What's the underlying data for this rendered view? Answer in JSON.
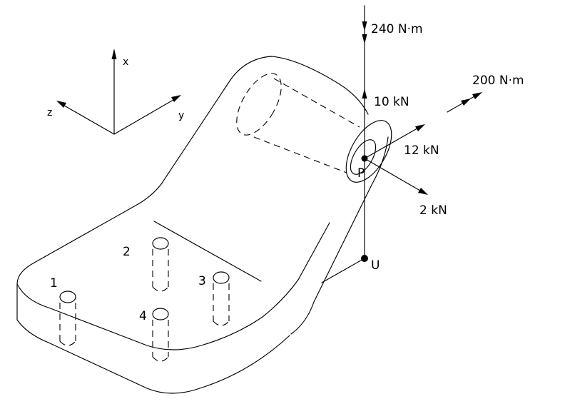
{
  "axes": {
    "x": "x",
    "y": "y",
    "z": "z"
  },
  "loads": {
    "moment_vertical": "240 N·m",
    "moment_side": "200 N·m",
    "force_up": "10 kN",
    "force_y": "12 kN",
    "force_z": "2 kN"
  },
  "points": {
    "p": "P",
    "u": "U"
  },
  "bolts": [
    "1",
    "2",
    "3",
    "4"
  ]
}
